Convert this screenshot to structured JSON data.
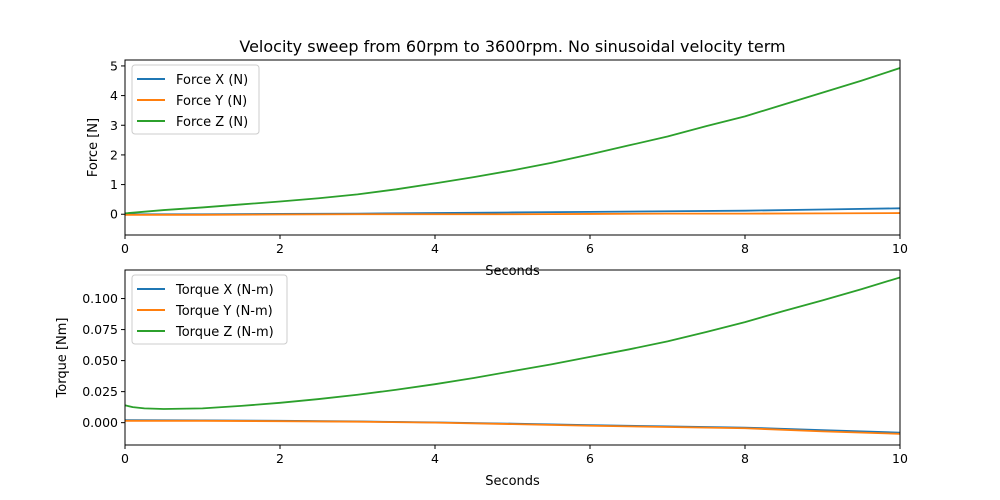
{
  "figure": {
    "title": "Velocity sweep from 60rpm to 3600rpm. No sinusoidal velocity term"
  },
  "chart_data": [
    {
      "type": "line",
      "title": "Velocity sweep from 60rpm to 3600rpm. No sinusoidal velocity term",
      "xlabel": "Seconds",
      "ylabel": "Force [N]",
      "xlim": [
        0,
        10
      ],
      "ylim": [
        -0.7,
        5.2
      ],
      "xticks": [
        0,
        2,
        4,
        6,
        8,
        10
      ],
      "yticks": [
        0,
        1,
        2,
        3,
        4,
        5
      ],
      "ytick_labels": [
        "0",
        "1",
        "2",
        "3",
        "4",
        "5"
      ],
      "grid": false,
      "legend_position": "top-left",
      "series": [
        {
          "name": "Force X (N)",
          "color": "#1f77b4",
          "x": [
            0,
            1,
            2,
            3,
            4,
            5,
            6,
            7,
            8,
            9,
            10
          ],
          "y": [
            0.0,
            0.0,
            0.01,
            0.02,
            0.04,
            0.06,
            0.08,
            0.1,
            0.12,
            0.16,
            0.2
          ]
        },
        {
          "name": "Force Y (N)",
          "color": "#ff7f0e",
          "x": [
            0,
            1,
            2,
            3,
            4,
            5,
            6,
            7,
            8,
            9,
            10
          ],
          "y": [
            -0.02,
            -0.02,
            -0.01,
            0.0,
            0.0,
            0.0,
            0.01,
            0.02,
            0.02,
            0.03,
            0.04
          ]
        },
        {
          "name": "Force Z (N)",
          "color": "#2ca02c",
          "x": [
            0,
            0.5,
            1,
            1.5,
            2,
            2.5,
            3,
            3.5,
            4,
            4.5,
            5,
            5.5,
            6,
            6.5,
            7,
            7.5,
            8,
            8.5,
            9,
            9.5,
            10
          ],
          "y": [
            0.03,
            0.14,
            0.23,
            0.33,
            0.43,
            0.54,
            0.67,
            0.84,
            1.04,
            1.25,
            1.48,
            1.73,
            2.02,
            2.32,
            2.62,
            2.97,
            3.3,
            3.7,
            4.1,
            4.5,
            4.93
          ]
        }
      ]
    },
    {
      "type": "line",
      "xlabel": "Seconds",
      "ylabel": "Torque [Nm]",
      "xlim": [
        0,
        10
      ],
      "ylim": [
        -0.018,
        0.123
      ],
      "xticks": [
        0,
        2,
        4,
        6,
        8,
        10
      ],
      "yticks": [
        0,
        0.025,
        0.05,
        0.075,
        0.1
      ],
      "ytick_labels": [
        "0.000",
        "0.025",
        "0.050",
        "0.075",
        "0.100"
      ],
      "grid": false,
      "legend_position": "top-left",
      "series": [
        {
          "name": "Torque X (N-m)",
          "color": "#1f77b4",
          "x": [
            0,
            1,
            2,
            3,
            4,
            5,
            6,
            7,
            8,
            9,
            10
          ],
          "y": [
            0.002,
            0.0018,
            0.0015,
            0.001,
            0.0002,
            -0.0008,
            -0.002,
            -0.003,
            -0.004,
            -0.006,
            -0.008
          ]
        },
        {
          "name": "Torque Y (N-m)",
          "color": "#ff7f0e",
          "x": [
            0,
            1,
            2,
            3,
            4,
            5,
            6,
            7,
            8,
            9,
            10
          ],
          "y": [
            0.0015,
            0.0015,
            0.0012,
            0.0008,
            0.0,
            -0.0012,
            -0.0025,
            -0.0035,
            -0.0045,
            -0.007,
            -0.009
          ]
        },
        {
          "name": "Torque Z (N-m)",
          "color": "#2ca02c",
          "x": [
            0,
            0.1,
            0.25,
            0.5,
            1,
            1.5,
            2,
            2.5,
            3,
            3.5,
            4,
            4.5,
            5,
            5.5,
            6,
            6.5,
            7,
            7.5,
            8,
            8.5,
            9,
            9.5,
            10
          ],
          "y": [
            0.014,
            0.0125,
            0.0115,
            0.011,
            0.0115,
            0.0135,
            0.016,
            0.019,
            0.0225,
            0.0265,
            0.031,
            0.036,
            0.0415,
            0.047,
            0.053,
            0.059,
            0.0655,
            0.073,
            0.081,
            0.09,
            0.0985,
            0.1075,
            0.117
          ]
        }
      ]
    }
  ]
}
